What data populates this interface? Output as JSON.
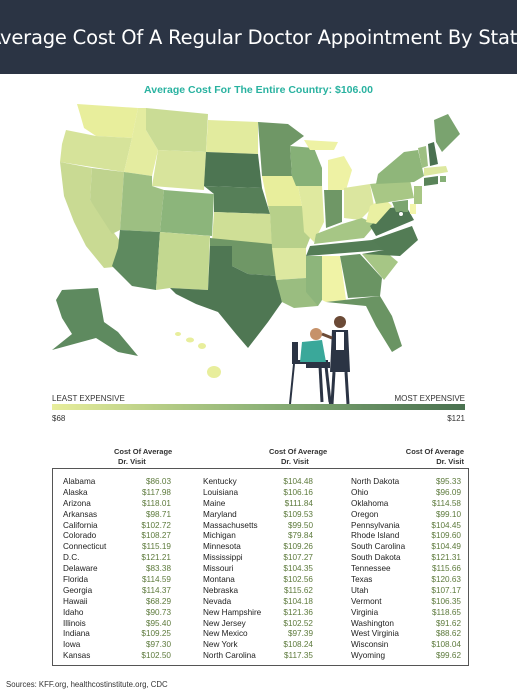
{
  "title": "Average Cost Of A Regular Doctor Appointment By State",
  "subtitle": "Average Cost For The Entire Country: $106.00",
  "legend": {
    "left_label": "LEAST EXPENSIVE",
    "right_label": "MOST EXPENSIVE",
    "min_value": "$68",
    "max_value": "$121",
    "colors": [
      "#e8ee9c",
      "#b8ce86",
      "#8fb378",
      "#678f63",
      "#4a7150"
    ]
  },
  "column_header": [
    "Cost Of Average",
    "Dr. Visit"
  ],
  "columns": [
    [
      {
        "state": "Alabama",
        "cost": "$86.03"
      },
      {
        "state": "Alaska",
        "cost": "$117.98"
      },
      {
        "state": "Arizona",
        "cost": "$118.01"
      },
      {
        "state": "Arkansas",
        "cost": "$98.71"
      },
      {
        "state": "California",
        "cost": "$102.72"
      },
      {
        "state": "Colorado",
        "cost": "$108.27"
      },
      {
        "state": "Connecticut",
        "cost": "$115.19"
      },
      {
        "state": "D.C.",
        "cost": "$121.21"
      },
      {
        "state": "Delaware",
        "cost": "$83.38"
      },
      {
        "state": "Florida",
        "cost": "$114.59"
      },
      {
        "state": "Georgia",
        "cost": "$114.37"
      },
      {
        "state": "Hawaii",
        "cost": "$68.29"
      },
      {
        "state": "Idaho",
        "cost": "$90.73"
      },
      {
        "state": "Illinois",
        "cost": "$95.40"
      },
      {
        "state": "Indiana",
        "cost": "$109.25"
      },
      {
        "state": "Iowa",
        "cost": "$97.30"
      },
      {
        "state": "Kansas",
        "cost": "$102.50"
      }
    ],
    [
      {
        "state": "Kentucky",
        "cost": "$104.48"
      },
      {
        "state": "Louisiana",
        "cost": "$106.16"
      },
      {
        "state": "Maine",
        "cost": "$111.84"
      },
      {
        "state": "Maryland",
        "cost": "$109.53"
      },
      {
        "state": "Massachusetts",
        "cost": "$99.50"
      },
      {
        "state": "Michigan",
        "cost": "$79.84"
      },
      {
        "state": "Minnesota",
        "cost": "$109.26"
      },
      {
        "state": "Mississippi",
        "cost": "$107.27"
      },
      {
        "state": "Missouri",
        "cost": "$104.35"
      },
      {
        "state": "Montana",
        "cost": "$102.56"
      },
      {
        "state": "Nebraska",
        "cost": "$115.62"
      },
      {
        "state": "Nevada",
        "cost": "$104.18"
      },
      {
        "state": "New Hampshire",
        "cost": "$121.36"
      },
      {
        "state": "New Jersey",
        "cost": "$102.52"
      },
      {
        "state": "New Mexico",
        "cost": "$97.39"
      },
      {
        "state": "New York",
        "cost": "$108.24"
      },
      {
        "state": "North Carolina",
        "cost": "$117.35"
      }
    ],
    [
      {
        "state": "North Dakota",
        "cost": "$95.33"
      },
      {
        "state": "Ohio",
        "cost": "$96.09"
      },
      {
        "state": "Oklahoma",
        "cost": "$114.58"
      },
      {
        "state": "Oregon",
        "cost": "$99.10"
      },
      {
        "state": "Pennsylvania",
        "cost": "$104.45"
      },
      {
        "state": "Rhode Island",
        "cost": "$109.60"
      },
      {
        "state": "South Carolina",
        "cost": "$104.49"
      },
      {
        "state": "South Dakota",
        "cost": "$121.31"
      },
      {
        "state": "Tennessee",
        "cost": "$115.66"
      },
      {
        "state": "Texas",
        "cost": "$120.63"
      },
      {
        "state": "Utah",
        "cost": "$107.17"
      },
      {
        "state": "Vermont",
        "cost": "$106.35"
      },
      {
        "state": "Virginia",
        "cost": "$118.65"
      },
      {
        "state": "Washington",
        "cost": "$91.62"
      },
      {
        "state": "West Virginia",
        "cost": "$88.62"
      },
      {
        "state": "Wisconsin",
        "cost": "$108.04"
      },
      {
        "state": "Wyoming",
        "cost": "$99.62"
      }
    ]
  ],
  "sources": "Sources: KFF.org, healthcostinstitute.org, CDC"
}
